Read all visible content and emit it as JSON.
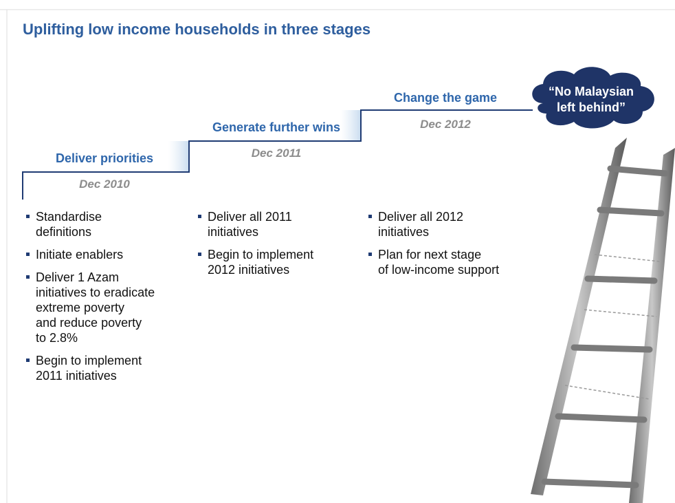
{
  "title": "Uplifting low income households in three stages",
  "stages": [
    {
      "label": "Deliver priorities",
      "date": "Dec 2010",
      "bullets": [
        [
          "Standardise",
          "definitions"
        ],
        [
          "Initiate enablers"
        ],
        [
          "Deliver 1 Azam",
          "initiatives to eradicate",
          "extreme poverty",
          "and reduce poverty",
          "to 2.8%"
        ],
        [
          "Begin to implement",
          "2011 initiatives"
        ]
      ]
    },
    {
      "label": "Generate further wins",
      "date": "Dec 2011",
      "bullets": [
        [
          "Deliver all 2011",
          "initiatives"
        ],
        [
          "Begin to implement",
          "2012 initiatives"
        ]
      ]
    },
    {
      "label": "Change the game",
      "date": "Dec 2012",
      "bullets": [
        [
          "Deliver all 2012",
          "initiatives"
        ],
        [
          "Plan for next stage",
          "of low-income support"
        ]
      ]
    }
  ],
  "callout": [
    "“No Malaysian",
    "left behind”"
  ]
}
